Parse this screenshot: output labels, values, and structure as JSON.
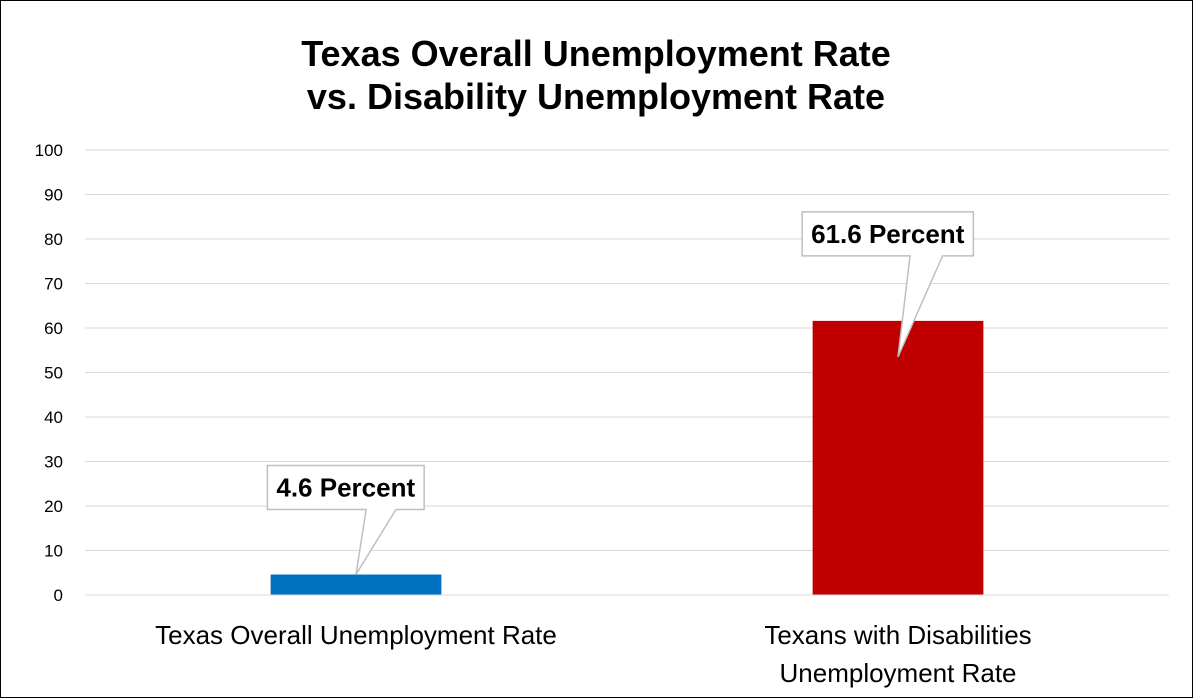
{
  "chart_data": {
    "type": "bar",
    "title": [
      "Texas Overall Unemployment Rate",
      "vs. Disability Unemployment Rate"
    ],
    "categories": [
      [
        "Texas Overall Unemployment Rate"
      ],
      [
        "Texans with Disabilities",
        "Unemployment Rate"
      ]
    ],
    "values": [
      4.6,
      61.6
    ],
    "data_labels": [
      "4.6 Percent",
      "61.6 Percent"
    ],
    "bar_colors": [
      "#0070c0",
      "#c00000"
    ],
    "ylim": [
      0,
      100
    ],
    "y_ticks": [
      0,
      10,
      20,
      30,
      40,
      50,
      60,
      70,
      80,
      90,
      100
    ],
    "grid": true,
    "legend": "none",
    "xlabel": "",
    "ylabel": ""
  }
}
